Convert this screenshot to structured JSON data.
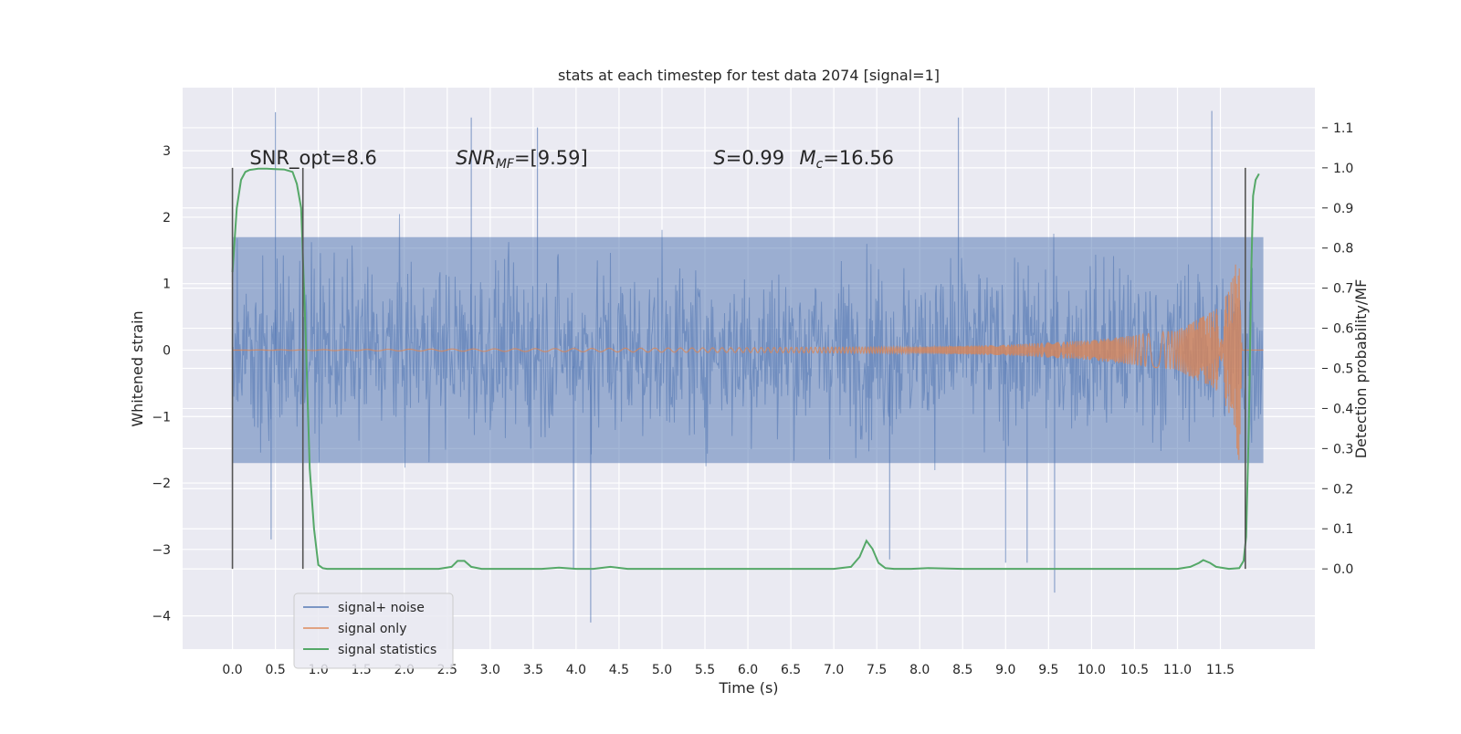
{
  "chart_data": {
    "type": "line",
    "title": "stats at each timestep for test data 2074 [signal=1]",
    "xlabel": "Time (s)",
    "ylabel": "Whitened strain",
    "y2label": "Detection probability/MF",
    "xlim": [
      -0.58,
      12.6
    ],
    "ylim": [
      -4.5,
      3.95
    ],
    "y2lim": [
      -0.2,
      1.2
    ],
    "xticks": [
      0.0,
      0.5,
      1.0,
      1.5,
      2.0,
      2.5,
      3.0,
      3.5,
      4.0,
      4.5,
      5.0,
      5.5,
      6.0,
      6.5,
      7.0,
      7.5,
      8.0,
      8.5,
      9.0,
      9.5,
      10.0,
      10.5,
      11.0,
      11.5
    ],
    "xtick_labels": [
      "0.0",
      "0.5",
      "1.0",
      "1.5",
      "2.0",
      "2.5",
      "3.0",
      "3.5",
      "4.0",
      "4.5",
      "5.0",
      "5.5",
      "6.0",
      "6.5",
      "7.0",
      "7.5",
      "8.0",
      "8.5",
      "9.0",
      "9.5",
      "10.0",
      "10.5",
      "11.0",
      "11.5"
    ],
    "yticks": [
      -4,
      -3,
      -2,
      -1,
      0,
      1,
      2,
      3
    ],
    "ytick_labels": [
      "−4",
      "−3",
      "−2",
      "−1",
      "0",
      "1",
      "2",
      "3"
    ],
    "y2ticks": [
      0.0,
      0.1,
      0.2,
      0.3,
      0.4,
      0.5,
      0.6,
      0.7,
      0.8,
      0.9,
      1.0,
      1.1
    ],
    "y2tick_labels": [
      "0.0",
      "0.1",
      "0.2",
      "0.3",
      "0.4",
      "0.5",
      "0.6",
      "0.7",
      "0.8",
      "0.9",
      "1.0",
      "1.1"
    ],
    "grid": true,
    "legend_position": "lower-left",
    "annotations": [
      {
        "text": "SNR_opt=8.6",
        "x": 0.2
      },
      {
        "text": "SNR_MF=[9.59]",
        "x": 2.6
      },
      {
        "text": "S=0.99",
        "x": 5.6
      },
      {
        "text": "M_c=16.56",
        "x": 6.6
      }
    ],
    "vertical_markers": [
      0.0,
      0.82,
      11.79
    ],
    "series": [
      {
        "name": "signal+ noise",
        "axis": "left",
        "color": "#4c72b0",
        "x_range": [
          0.0,
          12.0
        ],
        "band_low_typical": -1.7,
        "band_high_typical": 1.7,
        "spikes": [
          [
            0.5,
            3.58
          ],
          [
            2.78,
            3.5
          ],
          [
            3.55,
            3.35
          ],
          [
            8.45,
            3.5
          ],
          [
            11.4,
            3.6
          ],
          [
            4.17,
            -4.1
          ],
          [
            9.57,
            -3.65
          ],
          [
            3.97,
            -3.3
          ],
          [
            9.0,
            -3.2
          ],
          [
            9.25,
            -3.2
          ],
          [
            0.45,
            -2.85
          ],
          [
            7.65,
            -3.15
          ]
        ]
      },
      {
        "name": "signal only",
        "axis": "left",
        "color": "#dd8452",
        "x": [
          0.0,
          8.0,
          9.0,
          10.0,
          11.0,
          11.5,
          11.65,
          11.72,
          11.75,
          12.0
        ],
        "envelope": [
          0.0,
          0.05,
          0.08,
          0.15,
          0.3,
          0.65,
          1.1,
          1.75,
          0.0,
          0.0
        ]
      },
      {
        "name": "signal statistics",
        "axis": "right",
        "color": "#55a868",
        "x": [
          0.0,
          0.05,
          0.1,
          0.15,
          0.2,
          0.3,
          0.4,
          0.5,
          0.6,
          0.7,
          0.75,
          0.8,
          0.85,
          0.9,
          0.95,
          1.0,
          1.05,
          1.1,
          1.3,
          1.6,
          2.0,
          2.4,
          2.55,
          2.62,
          2.7,
          2.78,
          2.9,
          3.2,
          3.6,
          3.8,
          4.0,
          4.2,
          4.4,
          4.6,
          5.0,
          6.0,
          7.0,
          7.2,
          7.3,
          7.38,
          7.45,
          7.52,
          7.6,
          7.7,
          7.9,
          8.1,
          8.5,
          9.0,
          10.0,
          11.0,
          11.15,
          11.25,
          11.3,
          11.38,
          11.45,
          11.6,
          11.72,
          11.77,
          11.8,
          11.83,
          11.86,
          11.88,
          11.91,
          11.95
        ],
        "values": [
          0.74,
          0.9,
          0.97,
          0.99,
          0.995,
          0.998,
          0.998,
          0.997,
          0.996,
          0.99,
          0.96,
          0.9,
          0.6,
          0.25,
          0.1,
          0.01,
          0.002,
          0.0,
          0.0,
          0.0,
          0.0,
          0.0,
          0.005,
          0.02,
          0.02,
          0.005,
          0.0,
          0.0,
          0.0,
          0.003,
          0.0,
          0.0,
          0.005,
          0.0,
          0.0,
          0.0,
          0.0,
          0.005,
          0.03,
          0.07,
          0.05,
          0.015,
          0.002,
          0.0,
          0.0,
          0.002,
          0.0,
          0.0,
          0.0,
          0.0,
          0.005,
          0.015,
          0.022,
          0.015,
          0.005,
          0.0,
          0.002,
          0.02,
          0.08,
          0.35,
          0.75,
          0.93,
          0.97,
          0.985
        ]
      }
    ]
  }
}
